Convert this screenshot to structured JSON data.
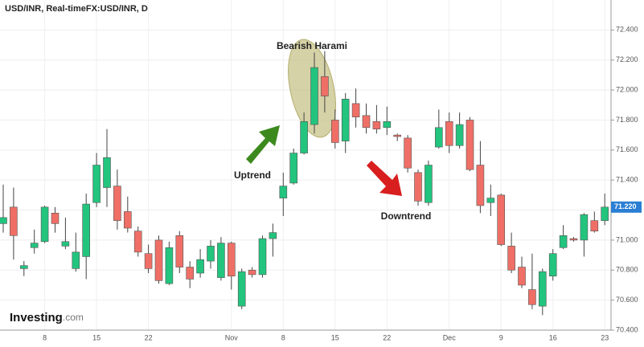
{
  "chart_data": {
    "type": "candlestick",
    "title": "USD/INR, Real-timeFX:USD/INR, D",
    "categories": [
      null,
      null,
      null,
      null,
      "8",
      null,
      null,
      null,
      null,
      "15",
      null,
      null,
      null,
      null,
      "22",
      null,
      null,
      null,
      null,
      null,
      null,
      null,
      "Nov",
      null,
      null,
      null,
      null,
      "8",
      null,
      null,
      null,
      null,
      "15",
      null,
      null,
      null,
      null,
      "22",
      null,
      null,
      null,
      null,
      null,
      "Dec",
      null,
      null,
      null,
      null,
      "9",
      null,
      null,
      null,
      null,
      "16",
      null,
      null,
      null,
      null,
      "23"
    ],
    "open": [
      71.11,
      71.22,
      70.81,
      70.95,
      70.99,
      71.18,
      70.96,
      70.81,
      70.89,
      71.25,
      71.35,
      71.36,
      71.19,
      71.06,
      70.91,
      71.0,
      70.71,
      71.03,
      70.82,
      70.78,
      70.86,
      70.75,
      70.98,
      70.56,
      70.8,
      70.77,
      71.01,
      71.28,
      71.38,
      71.58,
      71.77,
      72.09,
      71.8,
      71.66,
      71.91,
      71.83,
      71.79,
      71.75,
      71.7,
      71.68,
      71.45,
      71.25,
      71.62,
      71.79,
      71.63,
      71.8,
      71.5,
      71.25,
      71.3,
      70.96,
      70.82,
      70.67,
      70.56,
      70.76,
      70.95,
      71.01,
      71.0,
      71.13,
      71.13
    ],
    "high": [
      71.37,
      71.35,
      70.86,
      71.07,
      71.23,
      71.22,
      71.15,
      71.05,
      71.31,
      71.58,
      71.74,
      71.47,
      71.29,
      71.09,
      70.97,
      71.03,
      70.99,
      71.06,
      70.86,
      70.94,
      71.0,
      71.02,
      70.99,
      70.81,
      70.82,
      71.03,
      71.11,
      71.45,
      71.61,
      71.85,
      72.25,
      72.26,
      71.87,
      71.98,
      72.01,
      71.91,
      71.9,
      71.89,
      71.71,
      71.7,
      71.47,
      71.53,
      71.87,
      71.85,
      71.85,
      71.82,
      71.66,
      71.37,
      71.31,
      71.05,
      70.89,
      70.91,
      70.81,
      70.94,
      71.1,
      71.02,
      71.18,
      71.19,
      71.31
    ],
    "low": [
      71.05,
      70.87,
      70.76,
      70.91,
      70.98,
      71.05,
      70.94,
      70.79,
      70.74,
      71.22,
      71.22,
      71.07,
      71.05,
      70.89,
      70.78,
      70.71,
      70.7,
      70.78,
      70.68,
      70.75,
      70.81,
      70.73,
      70.67,
      70.54,
      70.75,
      70.75,
      70.89,
      71.16,
      71.37,
      71.57,
      71.71,
      71.85,
      71.61,
      71.58,
      71.75,
      71.71,
      71.71,
      71.7,
      71.66,
      71.45,
      71.23,
      71.23,
      71.61,
      71.58,
      71.61,
      71.46,
      71.18,
      71.16,
      70.96,
      70.78,
      70.68,
      70.54,
      70.5,
      70.73,
      70.94,
      70.99,
      70.89,
      71.05,
      71.1
    ],
    "close": [
      71.15,
      71.03,
      70.83,
      70.98,
      71.22,
      71.11,
      70.99,
      70.92,
      71.24,
      71.5,
      71.55,
      71.13,
      71.08,
      70.92,
      70.81,
      70.73,
      70.95,
      70.82,
      70.74,
      70.87,
      70.96,
      70.98,
      70.76,
      70.79,
      70.77,
      71.01,
      71.05,
      71.36,
      71.58,
      71.79,
      72.15,
      71.96,
      71.65,
      71.94,
      71.82,
      71.75,
      71.74,
      71.79,
      71.69,
      71.48,
      71.26,
      71.5,
      71.75,
      71.63,
      71.77,
      71.47,
      71.23,
      71.28,
      70.97,
      70.8,
      70.7,
      70.57,
      70.79,
      70.91,
      71.03,
      71.0,
      71.17,
      71.06,
      71.22
    ],
    "up_color": "#22c47e",
    "down_color": "#ef6f66",
    "ylim": [
      70.4,
      72.6
    ],
    "yticks": [
      {
        "value": 70.4,
        "label": "70.400"
      },
      {
        "value": 70.6,
        "label": "70.600"
      },
      {
        "value": 70.8,
        "label": "70.800"
      },
      {
        "value": 71.0,
        "label": "71.000"
      },
      {
        "value": 71.2,
        "label": "71.200"
      },
      {
        "value": 71.4,
        "label": "71.400"
      },
      {
        "value": 71.6,
        "label": "71.600"
      },
      {
        "value": 71.8,
        "label": "71.800"
      },
      {
        "value": 72.0,
        "label": "72.000"
      },
      {
        "value": 72.2,
        "label": "72.200"
      },
      {
        "value": 72.4,
        "label": "72.400"
      }
    ],
    "last_price": {
      "value": 71.22,
      "label": "71.220"
    },
    "grid": true,
    "annotations": {
      "pattern": "Bearish Harami",
      "up": "Uptrend",
      "down": "Downtrend"
    },
    "logo": {
      "brand": "Investing",
      "suffix": ".com"
    }
  }
}
